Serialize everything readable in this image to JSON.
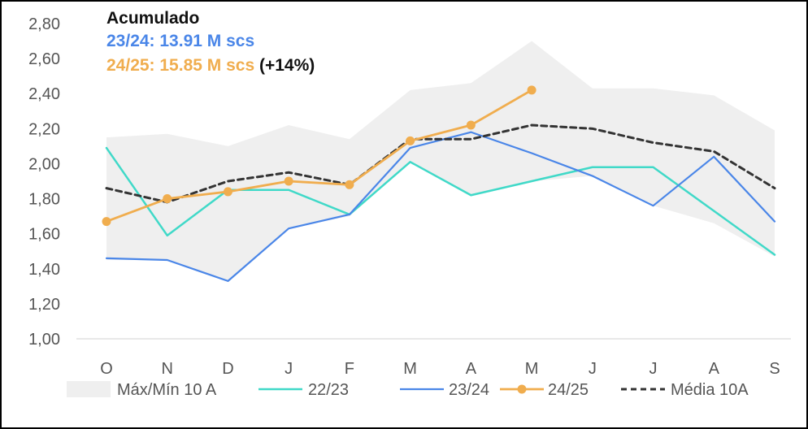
{
  "chart_data": {
    "type": "line",
    "categories": [
      "O",
      "N",
      "D",
      "J",
      "F",
      "M",
      "A",
      "M",
      "J",
      "J",
      "A",
      "S"
    ],
    "y_tick_labels": [
      "1,00",
      "1,20",
      "1,40",
      "1,60",
      "1,80",
      "2,00",
      "2,20",
      "2,40",
      "2,60",
      "2,80"
    ],
    "ylim": [
      1.0,
      2.8
    ],
    "band": {
      "name": "Máx/Mín 10 A",
      "upper": [
        2.15,
        2.17,
        2.1,
        2.22,
        2.14,
        2.42,
        2.46,
        2.7,
        2.43,
        2.43,
        2.39,
        2.19
      ],
      "lower": [
        1.45,
        1.45,
        1.33,
        1.63,
        1.7,
        2.01,
        1.82,
        1.9,
        1.93,
        1.76,
        1.66,
        1.47
      ]
    },
    "series": [
      {
        "name": "22/23",
        "values": [
          2.09,
          1.59,
          1.85,
          1.85,
          1.71,
          2.01,
          1.82,
          1.9,
          1.98,
          1.98,
          1.73,
          1.48
        ]
      },
      {
        "name": "23/24",
        "values": [
          1.46,
          1.45,
          1.33,
          1.63,
          1.71,
          2.09,
          2.18,
          2.06,
          1.93,
          1.76,
          2.04,
          1.67
        ]
      },
      {
        "name": "24/25",
        "values": [
          1.67,
          1.8,
          1.84,
          1.9,
          1.88,
          2.13,
          2.22,
          2.42,
          null,
          null,
          null,
          null
        ]
      },
      {
        "name": "Média 10A",
        "values": [
          1.86,
          1.78,
          1.9,
          1.95,
          1.88,
          2.14,
          2.14,
          2.22,
          2.2,
          2.12,
          2.07,
          1.86
        ]
      }
    ],
    "legend": [
      "Máx/Mín 10 A",
      "22/23",
      "23/24",
      "24/25",
      "Média 10A"
    ],
    "legend_position": "bottom",
    "annotation": {
      "title": "Acumulado",
      "line1": "23/24: 13.91 M scs",
      "line2": "24/25: 15.85 M scs",
      "line2_pct": "(+14%)"
    },
    "colors": {
      "band": "#efefef",
      "s2223": "#40d9c8",
      "s2324": "#4a86e8",
      "s2425": "#f0ad4e",
      "media": "#333333",
      "axis_text": "#555555"
    }
  }
}
